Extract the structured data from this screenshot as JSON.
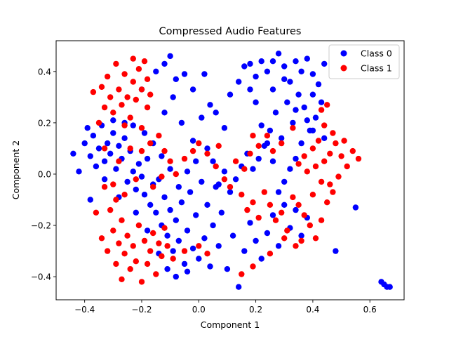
{
  "chart_data": {
    "type": "scatter",
    "title": "Compressed Audio Features",
    "xlabel": "Component 1",
    "ylabel": "Component 2",
    "xlim": [
      -0.5,
      0.72
    ],
    "ylim": [
      -0.49,
      0.52
    ],
    "xticks": [
      -0.4,
      -0.2,
      0.0,
      0.2,
      0.4,
      0.6
    ],
    "xtick_labels": [
      "−0.4",
      "−0.2",
      "0.0",
      "0.2",
      "0.4",
      "0.6"
    ],
    "yticks": [
      -0.4,
      -0.2,
      0.0,
      0.2,
      0.4
    ],
    "ytick_labels": [
      "−0.4",
      "−0.2",
      "0.0",
      "0.2",
      "0.4"
    ],
    "grid": false,
    "legend_position": "top-right",
    "series": [
      {
        "name": "Class 0",
        "color": "#0000ff",
        "points": [
          [
            -0.44,
            0.08
          ],
          [
            -0.42,
            0.01
          ],
          [
            -0.4,
            0.12
          ],
          [
            -0.39,
            0.18
          ],
          [
            -0.38,
            0.07
          ],
          [
            -0.37,
            0.15
          ],
          [
            -0.36,
            0.03
          ],
          [
            -0.35,
            0.1
          ],
          [
            -0.34,
            0.19
          ],
          [
            -0.33,
            0.05
          ],
          [
            -0.32,
            0.12
          ],
          [
            -0.31,
            0.08
          ],
          [
            -0.3,
            0.16
          ],
          [
            -0.29,
            0.02
          ],
          [
            -0.28,
            0.11
          ],
          [
            -0.27,
            0.06
          ],
          [
            -0.26,
            0.14
          ],
          [
            -0.25,
            -0.03
          ],
          [
            -0.24,
            0.09
          ],
          [
            -0.23,
            0.01
          ],
          [
            -0.22,
            -0.06
          ],
          [
            -0.21,
            0.04
          ],
          [
            -0.2,
            -0.01
          ],
          [
            -0.19,
            -0.08
          ],
          [
            -0.18,
            0.06
          ],
          [
            -0.17,
            -0.12
          ],
          [
            -0.16,
            -0.04
          ],
          [
            -0.15,
            -0.15
          ],
          [
            -0.14,
            -0.02
          ],
          [
            -0.13,
            -0.2
          ],
          [
            -0.12,
            -0.09
          ],
          [
            -0.11,
            -0.24
          ],
          [
            -0.1,
            -0.14
          ],
          [
            -0.09,
            -0.3
          ],
          [
            -0.08,
            -0.18
          ],
          [
            -0.07,
            -0.26
          ],
          [
            -0.06,
            -0.11
          ],
          [
            -0.05,
            -0.35
          ],
          [
            -0.04,
            -0.22
          ],
          [
            -0.03,
            -0.07
          ],
          [
            -0.02,
            -0.29
          ],
          [
            -0.01,
            -0.16
          ],
          [
            0.0,
            -0.33
          ],
          [
            0.01,
            -0.03
          ],
          [
            0.02,
            -0.25
          ],
          [
            0.03,
            -0.12
          ],
          [
            0.04,
            -0.36
          ],
          [
            0.05,
            -0.2
          ],
          [
            0.06,
            -0.05
          ],
          [
            0.07,
            -0.28
          ],
          [
            0.08,
            -0.15
          ],
          [
            0.1,
            -0.37
          ],
          [
            0.12,
            -0.24
          ],
          [
            0.14,
            -0.44
          ],
          [
            0.16,
            -0.3
          ],
          [
            0.18,
            -0.19
          ],
          [
            0.2,
            -0.26
          ],
          [
            0.22,
            -0.33
          ],
          [
            0.24,
            -0.23
          ],
          [
            0.26,
            -0.16
          ],
          [
            0.28,
            -0.28
          ],
          [
            0.3,
            -0.12
          ],
          [
            0.32,
            -0.21
          ],
          [
            0.34,
            -0.14
          ],
          [
            0.36,
            -0.24
          ],
          [
            0.38,
            -0.17
          ],
          [
            0.48,
            -0.3
          ],
          [
            0.55,
            -0.13
          ],
          [
            0.64,
            -0.42
          ],
          [
            0.65,
            -0.43
          ],
          [
            0.66,
            -0.44
          ],
          [
            0.67,
            -0.44
          ],
          [
            -0.38,
            -0.1
          ],
          [
            -0.33,
            -0.02
          ],
          [
            -0.28,
            -0.09
          ],
          [
            -0.22,
            -0.15
          ],
          [
            -0.18,
            -0.22
          ],
          [
            -0.14,
            -0.31
          ],
          [
            -0.11,
            -0.37
          ],
          [
            -0.08,
            -0.4
          ],
          [
            -0.04,
            -0.38
          ],
          [
            -0.2,
            0.33
          ],
          [
            -0.15,
            0.4
          ],
          [
            -0.12,
            0.43
          ],
          [
            -0.1,
            0.46
          ],
          [
            -0.08,
            0.37
          ],
          [
            -0.05,
            0.39
          ],
          [
            -0.02,
            0.33
          ],
          [
            0.02,
            0.39
          ],
          [
            0.04,
            0.27
          ],
          [
            -0.09,
            0.3
          ],
          [
            -0.12,
            0.24
          ],
          [
            -0.06,
            0.2
          ],
          [
            -0.02,
            0.13
          ],
          [
            0.01,
            0.22
          ],
          [
            0.06,
            0.24
          ],
          [
            0.09,
            0.18
          ],
          [
            0.11,
            0.31
          ],
          [
            0.14,
            0.36
          ],
          [
            0.16,
            0.42
          ],
          [
            0.18,
            0.43
          ],
          [
            0.2,
            0.38
          ],
          [
            0.22,
            0.44
          ],
          [
            0.24,
            0.4
          ],
          [
            0.26,
            0.44
          ],
          [
            0.28,
            0.47
          ],
          [
            0.3,
            0.42
          ],
          [
            0.32,
            0.36
          ],
          [
            0.34,
            0.44
          ],
          [
            0.36,
            0.4
          ],
          [
            0.38,
            0.45
          ],
          [
            0.4,
            0.39
          ],
          [
            0.42,
            0.35
          ],
          [
            0.43,
            0.28
          ],
          [
            0.41,
            0.22
          ],
          [
            0.39,
            0.17
          ],
          [
            0.37,
            0.26
          ],
          [
            0.35,
            0.31
          ],
          [
            0.33,
            0.2
          ],
          [
            0.31,
            0.28
          ],
          [
            0.29,
            0.14
          ],
          [
            0.27,
            0.24
          ],
          [
            0.25,
            0.17
          ],
          [
            0.23,
            0.11
          ],
          [
            0.21,
            0.06
          ],
          [
            0.19,
            0.02
          ],
          [
            0.17,
            0.08
          ],
          [
            0.15,
            0.03
          ],
          [
            0.13,
            -0.02
          ],
          [
            0.11,
            -0.07
          ],
          [
            0.09,
            0.01
          ],
          [
            0.07,
            -0.04
          ],
          [
            0.05,
            0.05
          ],
          [
            0.03,
            0.1
          ],
          [
            -0.01,
            0.05
          ],
          [
            -0.04,
            0.01
          ],
          [
            -0.07,
            -0.05
          ],
          [
            -0.1,
            0.02
          ],
          [
            -0.13,
            0.07
          ],
          [
            -0.16,
            0.12
          ],
          [
            -0.19,
            0.16
          ],
          [
            -0.23,
            0.19
          ],
          [
            -0.26,
            0.2
          ],
          [
            -0.3,
            0.21
          ],
          [
            0.44,
            0.43
          ],
          [
            0.4,
            0.31
          ],
          [
            0.38,
            0.21
          ],
          [
            0.36,
            0.12
          ],
          [
            0.34,
            0.06
          ],
          [
            0.32,
            0.02
          ],
          [
            0.3,
            -0.03
          ],
          [
            0.28,
            -0.07
          ],
          [
            0.26,
            0.05
          ],
          [
            0.24,
            0.12
          ],
          [
            0.22,
            0.19
          ],
          [
            0.2,
            0.28
          ],
          [
            0.18,
            0.33
          ],
          [
            0.26,
            0.33
          ],
          [
            0.3,
            0.37
          ],
          [
            0.34,
            0.25
          ],
          [
            0.4,
            0.17
          ],
          [
            0.44,
            0.14
          ]
        ]
      },
      {
        "name": "Class 1",
        "color": "#ff0000",
        "points": [
          [
            -0.37,
            0.32
          ],
          [
            -0.35,
            0.2
          ],
          [
            -0.34,
            0.34
          ],
          [
            -0.33,
            0.26
          ],
          [
            -0.32,
            0.38
          ],
          [
            -0.31,
            0.3
          ],
          [
            -0.3,
            0.24
          ],
          [
            -0.29,
            0.43
          ],
          [
            -0.28,
            0.33
          ],
          [
            -0.27,
            0.27
          ],
          [
            -0.26,
            0.39
          ],
          [
            -0.25,
            0.3
          ],
          [
            -0.24,
            0.22
          ],
          [
            -0.23,
            0.36
          ],
          [
            -0.22,
            0.29
          ],
          [
            -0.21,
            0.41
          ],
          [
            -0.2,
            0.33
          ],
          [
            -0.19,
            0.44
          ],
          [
            -0.18,
            0.37
          ],
          [
            -0.23,
            0.45
          ],
          [
            -0.26,
            0.19
          ],
          [
            -0.2,
            0.18
          ],
          [
            -0.18,
            0.26
          ],
          [
            -0.17,
            0.31
          ],
          [
            -0.33,
            -0.05
          ],
          [
            -0.31,
            -0.14
          ],
          [
            -0.3,
            -0.22
          ],
          [
            -0.29,
            -0.1
          ],
          [
            -0.28,
            -0.27
          ],
          [
            -0.27,
            -0.18
          ],
          [
            -0.26,
            -0.31
          ],
          [
            -0.25,
            -0.24
          ],
          [
            -0.24,
            -0.37
          ],
          [
            -0.23,
            -0.28
          ],
          [
            -0.22,
            -0.34
          ],
          [
            -0.21,
            -0.2
          ],
          [
            -0.2,
            -0.42
          ],
          [
            -0.19,
            -0.26
          ],
          [
            -0.18,
            -0.35
          ],
          [
            -0.17,
            -0.3
          ],
          [
            -0.16,
            -0.23
          ],
          [
            -0.15,
            -0.39
          ],
          [
            -0.14,
            -0.27
          ],
          [
            -0.13,
            -0.32
          ],
          [
            -0.12,
            -0.21
          ],
          [
            -0.11,
            -0.28
          ],
          [
            -0.27,
            -0.41
          ],
          [
            -0.29,
            -0.35
          ],
          [
            -0.32,
            -0.3
          ],
          [
            -0.3,
            -0.04
          ],
          [
            -0.26,
            -0.08
          ],
          [
            -0.22,
            -0.02
          ],
          [
            -0.2,
            0.09
          ],
          [
            -0.17,
            0.12
          ],
          [
            -0.14,
            0.15
          ],
          [
            -0.12,
            0.09
          ],
          [
            -0.24,
            0.1
          ],
          [
            -0.28,
            0.05
          ],
          [
            -0.33,
            0.1
          ],
          [
            -0.08,
            0.0
          ],
          [
            -0.05,
            0.06
          ],
          [
            -0.02,
            0.09
          ],
          [
            0.0,
            0.12
          ],
          [
            0.03,
            0.08
          ],
          [
            0.06,
            0.03
          ],
          [
            0.09,
            -0.02
          ],
          [
            0.11,
            -0.05
          ],
          [
            0.13,
            0.05
          ],
          [
            0.16,
            0.02
          ],
          [
            0.18,
            0.08
          ],
          [
            0.15,
            -0.08
          ],
          [
            0.17,
            -0.14
          ],
          [
            0.19,
            -0.11
          ],
          [
            0.21,
            -0.17
          ],
          [
            0.23,
            -0.07
          ],
          [
            0.25,
            -0.12
          ],
          [
            0.27,
            -0.18
          ],
          [
            0.29,
            -0.15
          ],
          [
            0.31,
            -0.22
          ],
          [
            0.33,
            -0.09
          ],
          [
            0.35,
            -0.12
          ],
          [
            0.37,
            -0.16
          ],
          [
            0.39,
            -0.2
          ],
          [
            0.41,
            -0.25
          ],
          [
            0.43,
            -0.18
          ],
          [
            0.45,
            -0.11
          ],
          [
            0.47,
            -0.07
          ],
          [
            0.43,
            -0.03
          ],
          [
            0.4,
            -0.08
          ],
          [
            0.38,
            0.01
          ],
          [
            0.41,
            0.03
          ],
          [
            0.44,
            0.05
          ],
          [
            0.46,
            0.08
          ],
          [
            0.48,
            0.12
          ],
          [
            0.5,
            0.07
          ],
          [
            0.52,
            0.03
          ],
          [
            0.54,
            0.09
          ],
          [
            0.56,
            0.06
          ],
          [
            0.49,
            -0.01
          ],
          [
            0.46,
            -0.04
          ],
          [
            0.51,
            0.13
          ],
          [
            0.47,
            0.16
          ],
          [
            0.44,
            0.19
          ],
          [
            0.42,
            0.13
          ],
          [
            0.4,
            0.1
          ],
          [
            0.37,
            0.07
          ],
          [
            0.35,
            0.04
          ],
          [
            0.43,
            0.25
          ],
          [
            0.45,
            0.27
          ],
          [
            0.33,
            0.18
          ],
          [
            0.29,
            0.12
          ],
          [
            0.26,
            0.09
          ],
          [
            0.24,
            0.15
          ],
          [
            0.21,
            0.11
          ],
          [
            0.19,
            0.15
          ],
          [
            0.34,
            -0.28
          ],
          [
            0.36,
            -0.26
          ],
          [
            0.3,
            -0.25
          ],
          [
            0.25,
            -0.31
          ],
          [
            0.19,
            -0.36
          ],
          [
            0.15,
            -0.39
          ],
          [
            -0.05,
            -0.3
          ],
          [
            0.0,
            -0.28
          ],
          [
            0.03,
            -0.31
          ],
          [
            -0.09,
            -0.33
          ],
          [
            -0.16,
            -0.05
          ],
          [
            -0.13,
            -0.01
          ],
          [
            -0.1,
            0.05
          ],
          [
            0.07,
            0.11
          ],
          [
            -0.36,
            -0.15
          ],
          [
            -0.34,
            -0.25
          ]
        ]
      }
    ]
  }
}
